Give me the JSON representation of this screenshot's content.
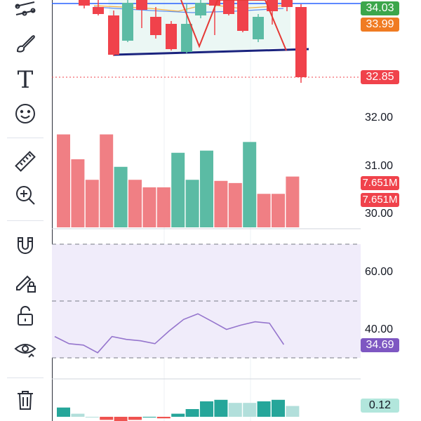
{
  "toolbar": {
    "items": [
      {
        "icon": "trend-line-icon"
      },
      {
        "icon": "brush-icon"
      },
      {
        "icon": "text-icon",
        "glyph": "T"
      },
      {
        "icon": "emoji-icon"
      },
      {
        "icon": "ruler-icon"
      },
      {
        "icon": "zoom-in-icon"
      },
      {
        "icon": "magnet-icon"
      },
      {
        "icon": "lock-drawing-icon"
      },
      {
        "icon": "unlock-icon"
      },
      {
        "icon": "eye-icon"
      },
      {
        "icon": "trash-icon"
      }
    ]
  },
  "price_axis": {
    "ticks": [
      "32.00",
      "31.00",
      "30.00"
    ]
  },
  "badges": {
    "price_green": "34.03",
    "price_orange": "33.99",
    "price_current": "32.85",
    "volume_1": "7.651M",
    "volume_2": "7.651M",
    "rsi_value": "34.69",
    "macd_value": "0.12"
  },
  "rsi_axis": {
    "ticks": [
      "60.00",
      "40.00"
    ]
  },
  "colors": {
    "up": "#5bbba4",
    "down": "#f07f84",
    "down_candle": "#f0424b",
    "badge_green": "#3ca64b",
    "badge_orange": "#f07b22",
    "badge_red": "#f0424b",
    "badge_purple": "#7e57c2",
    "badge_macd": "#b2e6dc",
    "rsi_fill": "#f0ecfa",
    "rsi_line": "#9575cd",
    "blue_line": "#2962ff"
  },
  "chart_data": [
    {
      "type": "bar",
      "name": "volume",
      "categories": [
        "1",
        "2",
        "3",
        "4",
        "5",
        "6",
        "7",
        "8",
        "9",
        "10",
        "11",
        "12",
        "13",
        "14",
        "15",
        "16",
        "17"
      ],
      "values": [
        8.6,
        6.3,
        4.4,
        8.6,
        5.6,
        4.4,
        3.7,
        3.7,
        6.9,
        4.4,
        7.1,
        4.3,
        4.1,
        7.9,
        3.1,
        3.1,
        4.7
      ],
      "direction": [
        "down",
        "down",
        "down",
        "down",
        "up",
        "down",
        "down",
        "down",
        "up",
        "up",
        "up",
        "down",
        "down",
        "up",
        "down",
        "down",
        "down"
      ],
      "ylim": [
        0,
        10
      ]
    },
    {
      "type": "line",
      "name": "rsi",
      "x": [
        1,
        2,
        3,
        4,
        5,
        6,
        7,
        8,
        9,
        10,
        11,
        12,
        13,
        14,
        15,
        16,
        17
      ],
      "values": [
        37.5,
        35.0,
        34.5,
        31.8,
        37.5,
        36.5,
        36.0,
        35.0,
        39.5,
        43.5,
        45.5,
        42.8,
        40.0,
        41.5,
        42.7,
        42.2,
        34.7
      ],
      "reference_lines": [
        70,
        50,
        30
      ],
      "ylim": [
        28,
        74
      ]
    },
    {
      "type": "bar",
      "name": "macd_histogram",
      "categories": [
        "1",
        "2",
        "3",
        "4",
        "5",
        "6",
        "7",
        "8",
        "9",
        "10",
        "11",
        "12",
        "13",
        "14",
        "15",
        "16",
        "17"
      ],
      "values": [
        0.06,
        0.02,
        0.0,
        -0.02,
        -0.04,
        -0.02,
        0.0,
        -0.01,
        0.02,
        0.05,
        0.1,
        0.11,
        0.09,
        0.09,
        0.1,
        0.11,
        0.07
      ],
      "ylim": [
        -0.05,
        0.13
      ]
    }
  ]
}
